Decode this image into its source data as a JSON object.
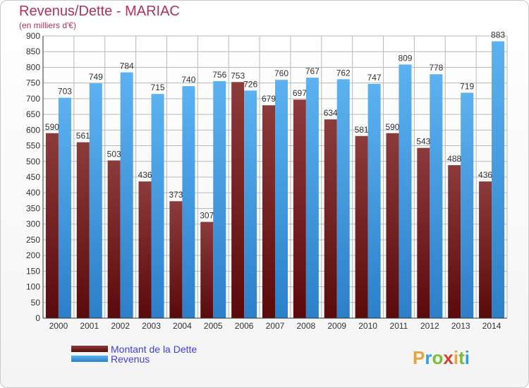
{
  "title": "Revenus/Dette - MARIAC",
  "subtitle": "(en milliers d'€)",
  "logo": "Proxiti",
  "colors": {
    "dette_dark": "#5a0a0a",
    "dette_light": "#8c3b3b",
    "revenus_dark": "#2c7fc9",
    "revenus_light": "#5cb2f0",
    "grid": "#b9b9b9",
    "title": "#b03060",
    "legend": "#3f3fd8"
  },
  "chart_data": {
    "type": "bar",
    "categories": [
      "2000",
      "2001",
      "2002",
      "2003",
      "2004",
      "2005",
      "2006",
      "2007",
      "2008",
      "2009",
      "2010",
      "2011",
      "2012",
      "2013",
      "2014"
    ],
    "series": [
      {
        "name": "Montant de la Dette",
        "values": [
          590,
          561,
          503,
          436,
          373,
          307,
          753,
          679,
          697,
          634,
          581,
          590,
          543,
          488,
          436
        ]
      },
      {
        "name": "Revenus",
        "values": [
          703,
          749,
          784,
          715,
          740,
          756,
          726,
          760,
          767,
          762,
          747,
          809,
          778,
          719,
          883
        ]
      }
    ],
    "ylim": [
      0,
      900
    ],
    "yticks": [
      0,
      50,
      100,
      150,
      200,
      250,
      300,
      350,
      400,
      450,
      500,
      550,
      600,
      650,
      700,
      750,
      800,
      850,
      900
    ],
    "grid": true,
    "legend": "bottom-left"
  }
}
